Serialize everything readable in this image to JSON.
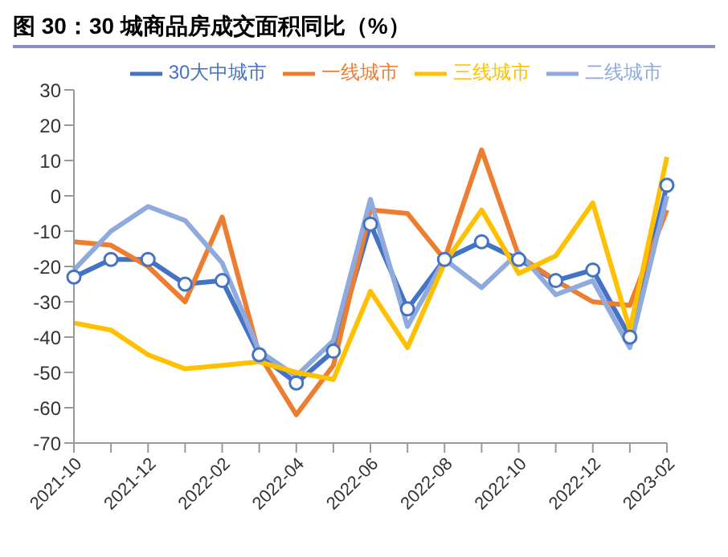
{
  "chart_data": {
    "type": "line",
    "title": "图 30：30 城商品房成交面积同比（%）",
    "categories": [
      "2021-10",
      null,
      "2021-12",
      null,
      "2022-02",
      null,
      "2022-04",
      null,
      "2022-06",
      null,
      "2022-08",
      null,
      "2022-10",
      null,
      "2022-12",
      null,
      "2023-02"
    ],
    "series": [
      {
        "name": "30大中城市",
        "color": "#4472c4",
        "marker": "circle",
        "values": [
          -23,
          -18,
          -18,
          -25,
          -24,
          -45,
          -53,
          -44,
          -8,
          -32,
          -18,
          -13,
          -18,
          -24,
          -21,
          -40,
          3
        ]
      },
      {
        "name": "一线城市",
        "color": "#ed7d31",
        "marker": "none",
        "values": [
          -13,
          -14,
          -20,
          -30,
          -6,
          -45,
          -62,
          -48,
          -4,
          -5,
          -18,
          13,
          -17,
          -24,
          -30,
          -31,
          -4
        ]
      },
      {
        "name": "二线城市",
        "color": "#8faadc",
        "marker": "none",
        "values": [
          -21,
          -10,
          -3,
          -7,
          -19,
          -44,
          -51,
          -41,
          -1,
          -37,
          -18,
          -26,
          -16,
          -28,
          -24,
          -43,
          0
        ]
      },
      {
        "name": "三线城市",
        "color": "#ffc000",
        "marker": "none",
        "values": [
          -36,
          -38,
          -45,
          -49,
          -48,
          -47,
          -50,
          -52,
          -27,
          -43,
          -19,
          -4,
          -22,
          -17,
          -2,
          -38,
          11
        ]
      }
    ],
    "ylim": [
      -70,
      30
    ],
    "yticks": [
      -70,
      -60,
      -50,
      -40,
      -30,
      -20,
      -10,
      0,
      10,
      20,
      30
    ],
    "grid": false,
    "legend": "top",
    "line_style": "solid"
  }
}
